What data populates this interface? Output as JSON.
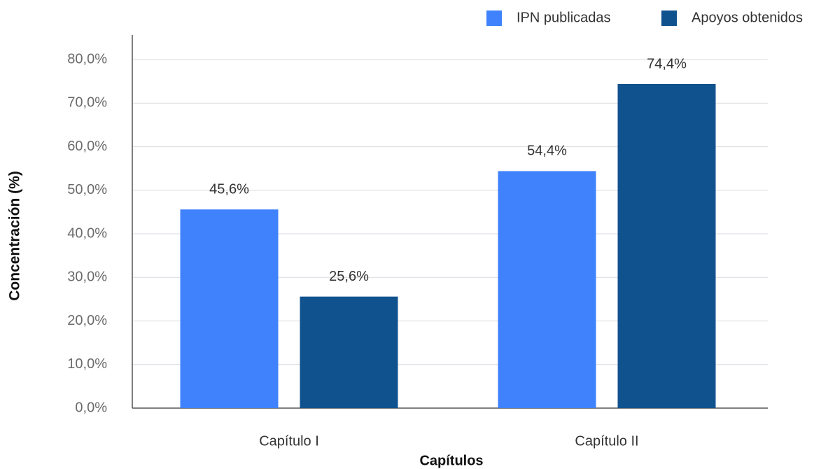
{
  "chart_data": {
    "type": "bar",
    "categories": [
      "Capítulo I",
      "Capítulo II"
    ],
    "series": [
      {
        "name": "IPN publicadas",
        "color": "#3f82fb",
        "values": [
          45.6,
          54.4
        ],
        "value_labels": [
          "45,6%",
          "54,4%"
        ]
      },
      {
        "name": "Apoyos obtenidos",
        "color": "#10528e",
        "values": [
          25.6,
          74.4
        ],
        "value_labels": [
          "25,6%",
          "74,4%"
        ]
      }
    ],
    "xlabel": "Capítulos",
    "ylabel": "Concentración (%)",
    "ylim": [
      0,
      85
    ],
    "yticks": [
      {
        "value": 0,
        "label": "0,0%"
      },
      {
        "value": 10,
        "label": "10,0%"
      },
      {
        "value": 20,
        "label": "20,0%"
      },
      {
        "value": 30,
        "label": "30,0%"
      },
      {
        "value": 40,
        "label": "40,0%"
      },
      {
        "value": 50,
        "label": "50,0%"
      },
      {
        "value": 60,
        "label": "60,0%"
      },
      {
        "value": 70,
        "label": "70,0%"
      },
      {
        "value": 80,
        "label": "80,0%"
      }
    ],
    "grid": true,
    "legend": "top-right"
  }
}
